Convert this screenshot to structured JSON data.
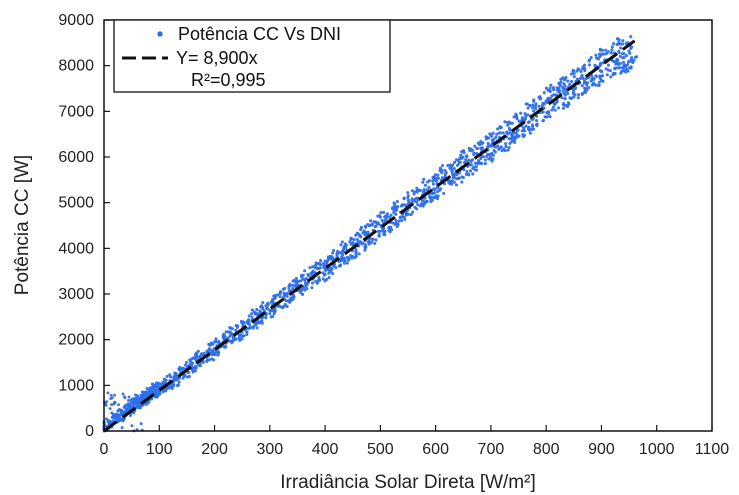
{
  "chart_data": {
    "type": "scatter",
    "title": "",
    "xlabel": "Irradiância Solar Direta [W/m²]",
    "ylabel": "Potência CC [W]",
    "xlim": [
      0,
      1100
    ],
    "ylim": [
      0,
      9000
    ],
    "x_ticks": [
      0,
      100,
      200,
      300,
      400,
      500,
      600,
      700,
      800,
      900,
      1000,
      1100
    ],
    "y_ticks": [
      0,
      1000,
      2000,
      3000,
      4000,
      5000,
      6000,
      7000,
      8000,
      9000
    ],
    "x_tick_labels": [
      "0",
      "100",
      "200",
      "300",
      "400",
      "500",
      "600",
      "700",
      "800",
      "900",
      "1000",
      "1100"
    ],
    "y_tick_labels": [
      "0",
      "1000",
      "2000",
      "3000",
      "4000",
      "5000",
      "6000",
      "7000",
      "8000",
      "9000"
    ],
    "grid": false,
    "legend_position": "top-left",
    "series": [
      {
        "name": "Potência CC Vs DNI",
        "kind": "scatter",
        "color": "#2f6fe8",
        "x": [
          0,
          10,
          20,
          30,
          40,
          50,
          60,
          70,
          80,
          90,
          100,
          120,
          140,
          160,
          180,
          200,
          220,
          240,
          260,
          280,
          300,
          320,
          340,
          360,
          380,
          400,
          420,
          440,
          460,
          480,
          500,
          520,
          540,
          560,
          580,
          600,
          620,
          640,
          660,
          680,
          700,
          720,
          740,
          760,
          780,
          800,
          820,
          840,
          860,
          880,
          900,
          920,
          940,
          960
        ],
        "y": [
          60,
          180,
          290,
          360,
          420,
          520,
          620,
          690,
          760,
          870,
          920,
          1080,
          1250,
          1450,
          1620,
          1800,
          1960,
          2150,
          2320,
          2520,
          2680,
          2880,
          3040,
          3230,
          3400,
          3560,
          3730,
          3950,
          4120,
          4300,
          4460,
          4660,
          4840,
          5030,
          5200,
          5340,
          5530,
          5720,
          5880,
          6050,
          6230,
          6420,
          6600,
          6780,
          6950,
          7130,
          7310,
          7490,
          7670,
          7840,
          8010,
          8170,
          8250,
          8300
        ]
      },
      {
        "name": "Y= 8,900x",
        "kind": "line",
        "color": "#111111",
        "dash": "dashed",
        "slope": 8.9,
        "x_range": [
          0,
          960
        ]
      }
    ],
    "legend_entries": [
      {
        "label": "Potência CC Vs DNI",
        "symbol": "dot",
        "color": "#2f6fe8"
      },
      {
        "label": "Y= 8,900x",
        "symbol": "dash",
        "color": "#111111"
      }
    ],
    "annotation": "R²=0,995"
  }
}
